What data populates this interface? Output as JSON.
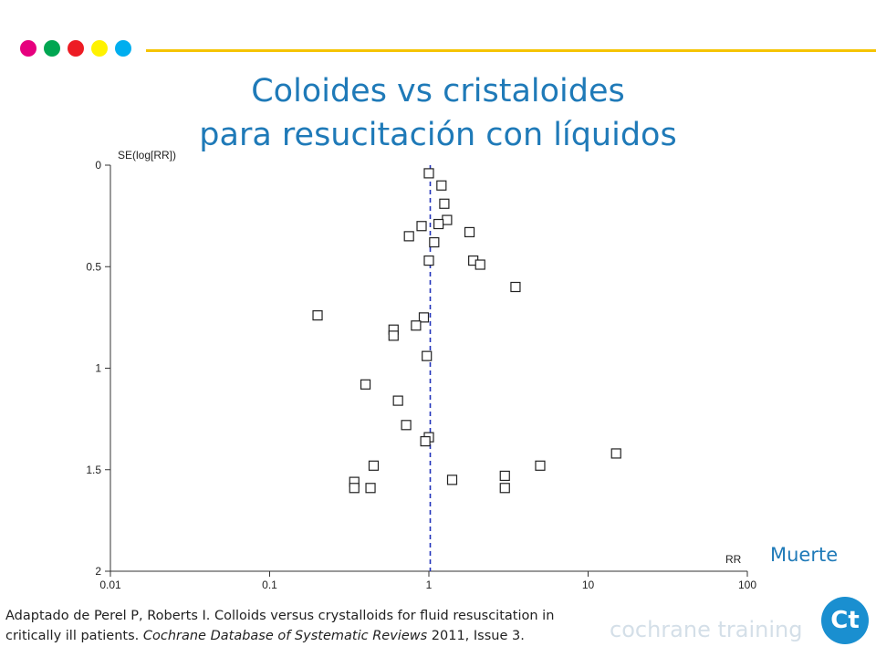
{
  "header": {
    "dot_colors": [
      "#e6007e",
      "#00a651",
      "#ed1c24",
      "#fff200",
      "#00aeef"
    ],
    "line_color": "#f5c400"
  },
  "title": {
    "line1": "Coloides vs cristaloides",
    "line2": "para resucitación con líquidos",
    "color": "#1f7ab8"
  },
  "outcome_label": "Muerte",
  "caption": {
    "part1": "Adaptado de Perel P, Roberts I. Colloids versus crystalloids for fluid resuscitation in critically ill patients. ",
    "journal": "Cochrane Database of Systematic Reviews",
    "part2": " 2011, Issue 3."
  },
  "brand": {
    "text": "cochrane training",
    "logo_text": "Ct",
    "logo_icon": "cochrane-training-logo"
  },
  "chart_data": {
    "type": "scatter",
    "subtype": "funnel-plot",
    "xlabel": "RR",
    "ylabel": "SE(log[RR])",
    "x_scale": "log",
    "xlim": [
      0.01,
      100
    ],
    "ylim": [
      0,
      2
    ],
    "y_inverted": true,
    "x_ticks": [
      "0.01",
      "0.1",
      "1",
      "10",
      "100"
    ],
    "x_tick_values": [
      0.01,
      0.1,
      1,
      10,
      100
    ],
    "y_ticks": [
      "0",
      "0.5",
      "1",
      "1.5",
      "2"
    ],
    "y_tick_values": [
      0,
      0.5,
      1,
      1.5,
      2
    ],
    "reference_line_x": 1.02,
    "reference_line_color": "#2233bb",
    "marker": "square",
    "points": [
      {
        "x": 1.0,
        "y": 0.04
      },
      {
        "x": 1.2,
        "y": 0.1
      },
      {
        "x": 1.25,
        "y": 0.19
      },
      {
        "x": 1.3,
        "y": 0.27
      },
      {
        "x": 1.15,
        "y": 0.29
      },
      {
        "x": 0.9,
        "y": 0.3
      },
      {
        "x": 0.75,
        "y": 0.35
      },
      {
        "x": 1.08,
        "y": 0.38
      },
      {
        "x": 1.8,
        "y": 0.33
      },
      {
        "x": 1.0,
        "y": 0.47
      },
      {
        "x": 1.9,
        "y": 0.47
      },
      {
        "x": 2.1,
        "y": 0.49
      },
      {
        "x": 3.5,
        "y": 0.6
      },
      {
        "x": 0.2,
        "y": 0.74
      },
      {
        "x": 0.93,
        "y": 0.75
      },
      {
        "x": 0.83,
        "y": 0.79
      },
      {
        "x": 0.6,
        "y": 0.81
      },
      {
        "x": 0.6,
        "y": 0.84
      },
      {
        "x": 0.97,
        "y": 0.94
      },
      {
        "x": 0.4,
        "y": 1.08
      },
      {
        "x": 0.64,
        "y": 1.16
      },
      {
        "x": 0.72,
        "y": 1.28
      },
      {
        "x": 1.0,
        "y": 1.34
      },
      {
        "x": 0.95,
        "y": 1.36
      },
      {
        "x": 15.0,
        "y": 1.42
      },
      {
        "x": 0.45,
        "y": 1.48
      },
      {
        "x": 5.0,
        "y": 1.48
      },
      {
        "x": 3.0,
        "y": 1.53
      },
      {
        "x": 1.4,
        "y": 1.55
      },
      {
        "x": 0.34,
        "y": 1.56
      },
      {
        "x": 0.34,
        "y": 1.59
      },
      {
        "x": 0.43,
        "y": 1.59
      },
      {
        "x": 3.0,
        "y": 1.59
      }
    ]
  }
}
